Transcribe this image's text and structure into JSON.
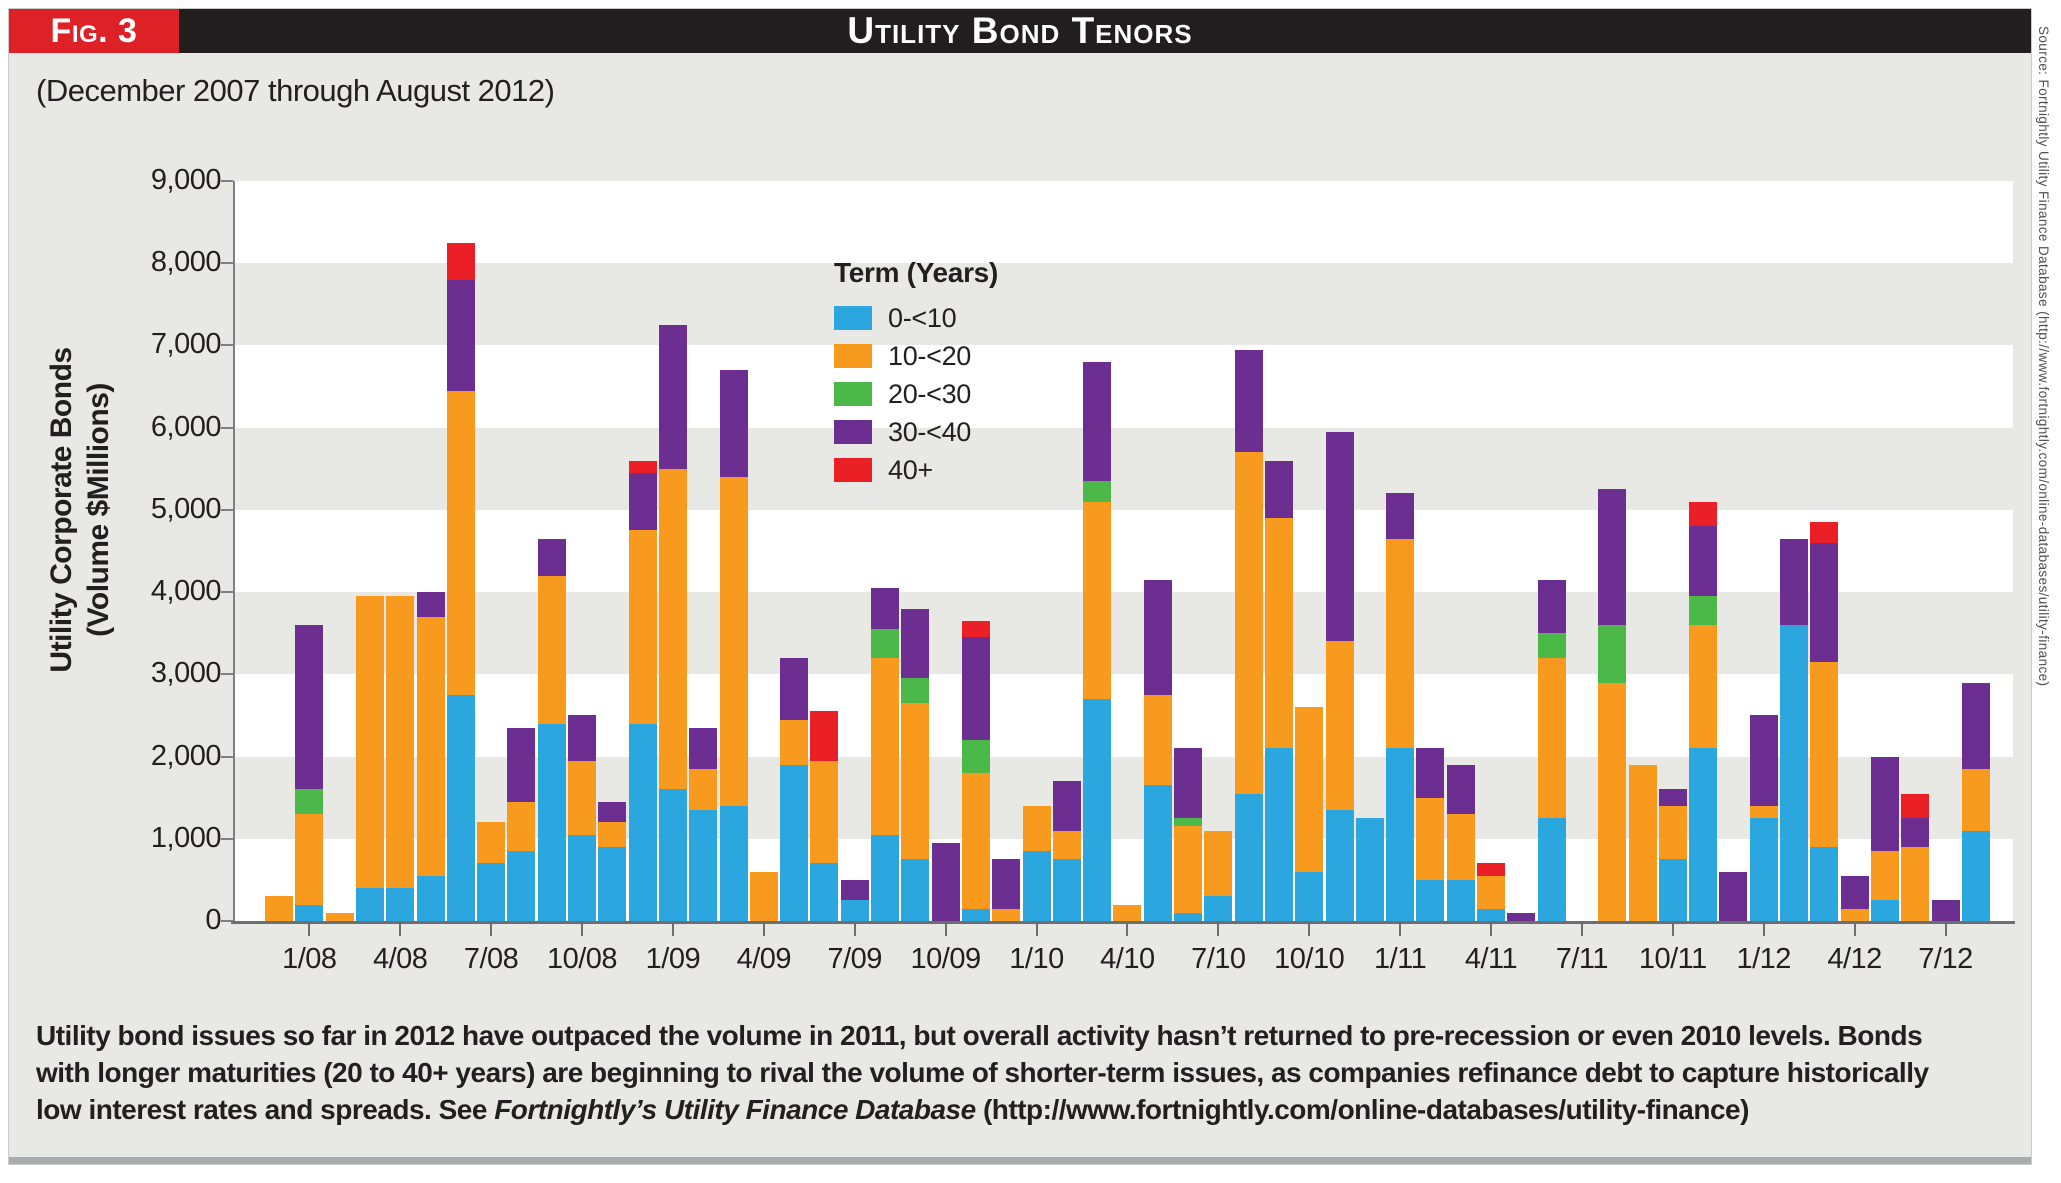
{
  "figure": {
    "tag": "Fig. 3",
    "title": "Utility Bond Tenors",
    "subtitle": "(December 2007 through August 2012)"
  },
  "source_note": "Source: Fortnightly Utility Finance Database (http://www.fortnightly.com/online-databases/utility-finance)",
  "footer": {
    "line1": "Utility bond issues so far in 2012 have outpaced the volume in 2011, but overall activity hasn’t returned to pre-recession or even 2010 levels. Bonds",
    "line2": "with longer maturities (20 to 40+ years) are beginning to rival the volume of shorter-term issues, as companies refinance debt to capture historically",
    "line3_pre": "low interest rates and spreads. See ",
    "line3_italic": "Fortnightly’s Utility Finance Database",
    "line3_post": " (http://www.fortnightly.com/online-databases/utility-finance)"
  },
  "colors": {
    "panel_bg": "#E8E8E4",
    "band_white": "#FFFFFF",
    "header_black": "#221E1F",
    "fig_red": "#DD2127",
    "axis_gray": "#7D7F82",
    "axis_dark": "#6D6E71",
    "text": "#231F20"
  },
  "chart_data": {
    "type": "bar",
    "stacked": true,
    "title": "Utility Bond Tenors",
    "ylabel_line1": "Utility Corporate Bonds",
    "ylabel_line2": "(Volume $Millions)",
    "ylim": [
      0,
      9000
    ],
    "y_tick_step": 1000,
    "y_tick_labels": [
      "0",
      "1,000",
      "2,000",
      "3,000",
      "4,000",
      "5,000",
      "6,000",
      "7,000",
      "8,000",
      "9,000"
    ],
    "band_pattern": "alternating white/gray horizontal bands every 1000 units, white at 0-1000",
    "legend_title": "Term (Years)",
    "legend_position": "upper middle inside plot",
    "x_categories": [
      "12/07",
      "1/08",
      "2/08",
      "3/08",
      "4/08",
      "5/08",
      "6/08",
      "7/08",
      "8/08",
      "9/08",
      "10/08",
      "11/08",
      "12/08",
      "1/09",
      "2/09",
      "3/09",
      "4/09",
      "5/09",
      "6/09",
      "7/09",
      "8/09",
      "9/09",
      "10/09",
      "11/09",
      "12/09",
      "1/10",
      "2/10",
      "3/10",
      "4/10",
      "5/10",
      "6/10",
      "7/10",
      "8/10",
      "9/10",
      "10/10",
      "11/10",
      "12/10",
      "1/11",
      "2/11",
      "3/11",
      "4/11",
      "5/11",
      "6/11",
      "7/11",
      "8/11",
      "9/11",
      "10/11",
      "11/11",
      "12/11",
      "1/12",
      "2/12",
      "3/12",
      "4/12",
      "5/12",
      "6/12",
      "7/12",
      "8/12"
    ],
    "x_tick_labels": [
      "1/08",
      "4/08",
      "7/08",
      "10/08",
      "1/09",
      "4/09",
      "7/09",
      "10/09",
      "1/10",
      "4/10",
      "7/10",
      "10/10",
      "1/11",
      "4/11",
      "7/11",
      "10/11",
      "1/12",
      "4/12",
      "7/12"
    ],
    "series": [
      {
        "name": "0-<10",
        "color": "#2BA6DE",
        "values": [
          0,
          200,
          0,
          400,
          400,
          550,
          2750,
          700,
          850,
          2400,
          1050,
          900,
          2400,
          1600,
          1350,
          1400,
          0,
          1900,
          700,
          250,
          1050,
          750,
          0,
          150,
          0,
          850,
          750,
          2700,
          0,
          1650,
          100,
          300,
          1550,
          2100,
          600,
          1350,
          1250,
          2100,
          500,
          500,
          150,
          0,
          1250,
          0,
          0,
          0,
          750,
          2100,
          0,
          1250,
          3600,
          900,
          0,
          250,
          0,
          0,
          1100
        ]
      },
      {
        "name": "10-<20",
        "color": "#F79A1E",
        "values": [
          300,
          1100,
          100,
          3550,
          3550,
          3150,
          3700,
          500,
          600,
          1800,
          900,
          300,
          2350,
          3900,
          500,
          4000,
          600,
          550,
          1250,
          0,
          2150,
          1900,
          0,
          1650,
          150,
          550,
          350,
          2400,
          200,
          1100,
          1050,
          800,
          4150,
          2800,
          2000,
          2050,
          0,
          2550,
          1000,
          800,
          400,
          0,
          1950,
          0,
          2900,
          1900,
          650,
          1500,
          0,
          150,
          0,
          2250,
          150,
          600,
          900,
          0,
          750
        ]
      },
      {
        "name": "20-<30",
        "color": "#4CB84A",
        "values": [
          0,
          300,
          0,
          0,
          0,
          0,
          0,
          0,
          0,
          0,
          0,
          0,
          0,
          0,
          0,
          0,
          0,
          0,
          0,
          0,
          350,
          300,
          0,
          400,
          0,
          0,
          0,
          250,
          0,
          0,
          100,
          0,
          0,
          0,
          0,
          0,
          0,
          0,
          0,
          0,
          0,
          0,
          300,
          0,
          700,
          0,
          0,
          350,
          0,
          0,
          0,
          0,
          0,
          0,
          0,
          0,
          0
        ]
      },
      {
        "name": "30-<40",
        "color": "#6C2E90",
        "values": [
          0,
          2000,
          0,
          0,
          0,
          300,
          1350,
          0,
          900,
          450,
          550,
          250,
          700,
          1750,
          500,
          1300,
          0,
          750,
          0,
          250,
          500,
          850,
          950,
          1250,
          600,
          0,
          600,
          1450,
          0,
          1400,
          850,
          0,
          1250,
          700,
          0,
          2550,
          0,
          550,
          600,
          600,
          0,
          100,
          650,
          0,
          1650,
          0,
          200,
          850,
          600,
          1100,
          1050,
          1450,
          400,
          1150,
          350,
          250,
          1050
        ]
      },
      {
        "name": "40+",
        "color": "#EB1F26",
        "values": [
          0,
          0,
          0,
          0,
          0,
          0,
          450,
          0,
          0,
          0,
          0,
          0,
          150,
          0,
          0,
          0,
          0,
          0,
          600,
          0,
          0,
          0,
          0,
          200,
          0,
          0,
          0,
          0,
          0,
          0,
          0,
          0,
          0,
          0,
          0,
          0,
          0,
          0,
          0,
          0,
          150,
          0,
          0,
          0,
          0,
          0,
          0,
          300,
          0,
          0,
          0,
          250,
          0,
          0,
          300,
          0,
          0
        ]
      }
    ]
  }
}
